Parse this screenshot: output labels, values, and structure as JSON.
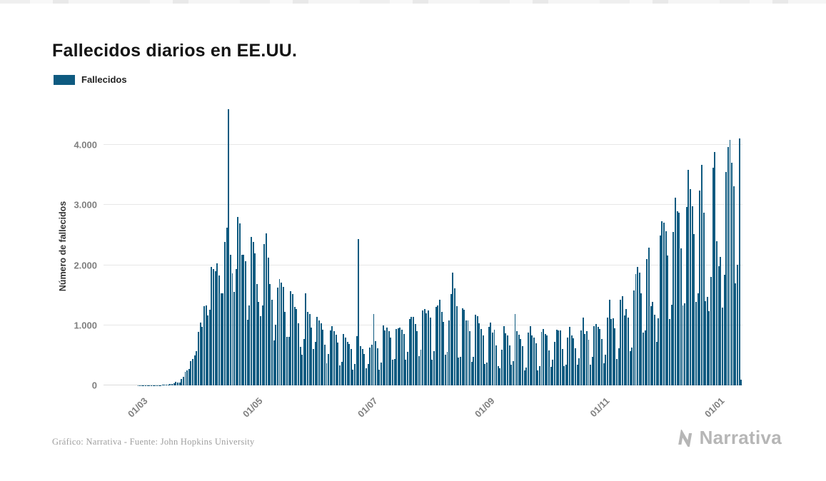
{
  "page": {
    "title": "Fallecidos diarios en EE.UU.",
    "footer_credit": "Gráfico: Narrativa - Fuente: John Hopkins University",
    "brand": "Narrativa"
  },
  "legend": {
    "label": "Fallecidos",
    "color": "#0e5a80"
  },
  "chart_data": {
    "type": "bar",
    "title": "Fallecidos diarios en EE.UU.",
    "xlabel": "",
    "ylabel": "Número de fallecidos",
    "series_name": "Fallecidos",
    "bar_color": "#0e5a80",
    "grid": true,
    "legend_position": "top-left",
    "ylim": [
      0,
      4630
    ],
    "y_ticks": [
      {
        "value": 0,
        "label": "0"
      },
      {
        "value": 1000,
        "label": "1.000"
      },
      {
        "value": 2000,
        "label": "2.000"
      },
      {
        "value": 3000,
        "label": "3.000"
      },
      {
        "value": 4000,
        "label": "4.000"
      }
    ],
    "x_ticks": [
      {
        "index": 20,
        "label": "01/03"
      },
      {
        "index": 81,
        "label": "01/05"
      },
      {
        "index": 142,
        "label": "01/07"
      },
      {
        "index": 204,
        "label": "01/09"
      },
      {
        "index": 265,
        "label": "01/11"
      },
      {
        "index": 326,
        "label": "01/01"
      }
    ],
    "x_tick_rotation": -45,
    "values": [
      0,
      0,
      0,
      0,
      0,
      0,
      0,
      0,
      0,
      0,
      0,
      0,
      0,
      0,
      0,
      0,
      0,
      0,
      1,
      1,
      1,
      2,
      3,
      2,
      3,
      3,
      4,
      4,
      4,
      6,
      4,
      7,
      9,
      12,
      11,
      18,
      23,
      41,
      57,
      49,
      46,
      111,
      140,
      225,
      247,
      268,
      400,
      445,
      500,
      575,
      895,
      1049,
      968,
      1321,
      1331,
      1165,
      1255,
      1970,
      1940,
      1900,
      2035,
      1830,
      1528,
      1535,
      2383,
      2621,
      4591,
      2176,
      1867,
      1561,
      1939,
      2804,
      2693,
      2172,
      2173,
      2065,
      1087,
      1324,
      2470,
      2390,
      2201,
      1691,
      1388,
      1154,
      1324,
      2350,
      2528,
      2129,
      1687,
      1422,
      750,
      1008,
      1630,
      1772,
      1715,
      1635,
      1218,
      808,
      808,
      1568,
      1518,
      1305,
      1265,
      1035,
      638,
      505,
      774,
      1535,
      1223,
      1193,
      960,
      605,
      730,
      1134,
      1083,
      1031,
      921,
      675,
      372,
      525,
      915,
      985,
      902,
      846,
      716,
      330,
      390,
      860,
      800,
      722,
      684,
      611,
      267,
      362,
      825,
      2437,
      648,
      608,
      517,
      287,
      356,
      635,
      680,
      1190,
      732,
      613,
      265,
      375,
      993,
      920,
      964,
      908,
      790,
      430,
      435,
      935,
      955,
      963,
      928,
      853,
      430,
      557,
      1104,
      1135,
      1140,
      1019,
      900,
      490,
      598,
      1244,
      1267,
      1203,
      1252,
      1129,
      430,
      565,
      1302,
      1331,
      1420,
      1222,
      1051,
      510,
      555,
      1075,
      1517,
      1880,
      1610,
      1320,
      460,
      477,
      1285,
      1264,
      1075,
      1082,
      905,
      390,
      475,
      1180,
      1153,
      1033,
      940,
      837,
      360,
      380,
      976,
      1043,
      876,
      930,
      660,
      320,
      290,
      590,
      980,
      868,
      830,
      664,
      340,
      400,
      1191,
      898,
      840,
      776,
      655,
      250,
      300,
      880,
      990,
      832,
      801,
      700,
      250,
      320,
      886,
      936,
      854,
      832,
      585,
      310,
      425,
      720,
      931,
      918,
      916,
      600,
      320,
      350,
      795,
      969,
      836,
      780,
      620,
      340,
      450,
      920,
      1124,
      856,
      900,
      760,
      340,
      477,
      985,
      1025,
      971,
      940,
      770,
      370,
      510,
      1130,
      1420,
      1105,
      1113,
      950,
      440,
      620,
      1420,
      1480,
      1160,
      1266,
      1130,
      570,
      630,
      1580,
      1850,
      1970,
      1878,
      1535,
      880,
      920,
      2100,
      2290,
      1320,
      1385,
      1180,
      720,
      1120,
      2490,
      2733,
      2706,
      2563,
      2166,
      1110,
      1345,
      2550,
      3124,
      2900,
      2870,
      2280,
      1330,
      1370,
      2966,
      3580,
      3270,
      2983,
      2520,
      1390,
      1526,
      3239,
      3668,
      2875,
      1405,
      1470,
      1230,
      1800,
      3625,
      3880,
      2400,
      1980,
      2140,
      1290,
      1840,
      3550,
      3964,
      4085,
      3700,
      3310,
      1700,
      2010,
      4111,
      100
    ]
  }
}
